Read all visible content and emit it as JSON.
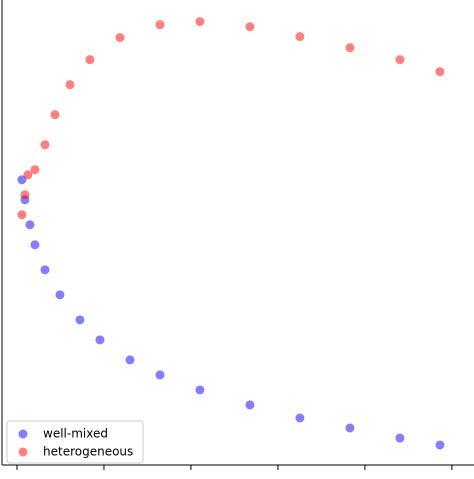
{
  "chart_data": {
    "type": "scatter",
    "series": [
      {
        "name": "well-mixed",
        "color": "#0000ff",
        "x": [
          0.057,
          0.092,
          0.149,
          0.207,
          0.322,
          0.494,
          0.724,
          0.954,
          1.299,
          1.644,
          2.103,
          2.678,
          3.253,
          3.828,
          4.402,
          4.862
        ],
        "values": [
          3.276,
          3.046,
          2.759,
          2.529,
          2.241,
          1.954,
          1.667,
          1.437,
          1.207,
          1.034,
          0.862,
          0.69,
          0.54,
          0.425,
          0.31,
          0.23
        ]
      },
      {
        "name": "heterogeneous",
        "color": "#ff0000",
        "x": [
          0.057,
          0.092,
          0.126,
          0.207,
          0.322,
          0.437,
          0.609,
          0.839,
          1.184,
          1.644,
          2.103,
          2.678,
          3.253,
          3.828,
          4.402,
          4.862
        ],
        "values": [
          2.874,
          3.103,
          3.333,
          3.391,
          3.678,
          4.023,
          4.368,
          4.655,
          4.908,
          5.057,
          5.092,
          5.034,
          4.92,
          4.793,
          4.655,
          4.517
        ]
      }
    ],
    "xlim": [
      -0.172,
      5.07
    ],
    "ylim": [
      0,
      5.34
    ],
    "xticks": [
      0,
      1,
      2,
      3,
      4,
      5
    ],
    "legend": "lower left"
  }
}
